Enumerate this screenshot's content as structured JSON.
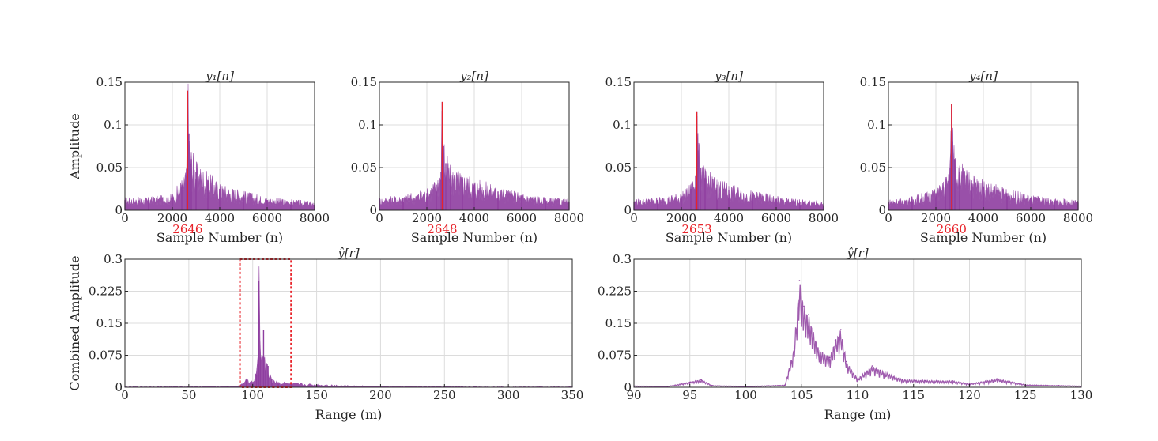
{
  "colors": {
    "series": "#8e3ea0",
    "marker": "#e8232a",
    "grid": "#dcdcdc",
    "axis": "#262626"
  },
  "chart_data": [
    {
      "type": "area",
      "title": "y₁[n]",
      "xlabel": "Sample Number (n)",
      "ylabel": "Amplitude",
      "xlim": [
        0,
        8000
      ],
      "ylim": [
        0,
        0.15
      ],
      "xticks": [
        "0",
        "2000",
        "4000",
        "6000",
        "8000"
      ],
      "yticks": [
        "0",
        "0.05",
        "0.1",
        "0.15"
      ],
      "grid": true,
      "marker": {
        "x": 2646,
        "label": "2646"
      },
      "peak": 0.14,
      "series": [
        {
          "x": [
            0,
            1000,
            2000,
            2400,
            2600,
            2646,
            2700,
            2800,
            3000,
            3500,
            4000,
            5000,
            6000,
            7000,
            8000
          ],
          "y": [
            0.012,
            0.012,
            0.015,
            0.03,
            0.04,
            0.14,
            0.09,
            0.06,
            0.045,
            0.035,
            0.025,
            0.018,
            0.012,
            0.01,
            0.008
          ]
        }
      ]
    },
    {
      "type": "area",
      "title": "y₂[n]",
      "xlabel": "Sample Number (n)",
      "ylabel": "",
      "xlim": [
        0,
        8000
      ],
      "ylim": [
        0,
        0.15
      ],
      "xticks": [
        "0",
        "2000",
        "4000",
        "6000",
        "8000"
      ],
      "yticks": [
        "0",
        "0.05",
        "0.1",
        "0.15"
      ],
      "grid": true,
      "marker": {
        "x": 2648,
        "label": "2648"
      },
      "peak": 0.127,
      "series": [
        {
          "x": [
            0,
            1000,
            2000,
            2400,
            2600,
            2648,
            2700,
            2800,
            3000,
            3500,
            4000,
            5000,
            6000,
            7000,
            8000
          ],
          "y": [
            0.012,
            0.014,
            0.02,
            0.03,
            0.045,
            0.127,
            0.075,
            0.055,
            0.04,
            0.036,
            0.03,
            0.022,
            0.016,
            0.012,
            0.01
          ]
        }
      ]
    },
    {
      "type": "area",
      "title": "y₃[n]",
      "xlabel": "Sample Number (n)",
      "ylabel": "",
      "xlim": [
        0,
        8000
      ],
      "ylim": [
        0,
        0.15
      ],
      "xticks": [
        "0",
        "2000",
        "4000",
        "6000",
        "8000"
      ],
      "yticks": [
        "0",
        "0.05",
        "0.1",
        "0.15"
      ],
      "grid": true,
      "marker": {
        "x": 2653,
        "label": "2653"
      },
      "peak": 0.115,
      "series": [
        {
          "x": [
            0,
            1000,
            2000,
            2400,
            2600,
            2653,
            2700,
            2800,
            3000,
            3500,
            4000,
            5000,
            6000,
            7000,
            8000
          ],
          "y": [
            0.01,
            0.012,
            0.016,
            0.025,
            0.04,
            0.115,
            0.07,
            0.05,
            0.038,
            0.03,
            0.024,
            0.018,
            0.013,
            0.01,
            0.008
          ]
        }
      ]
    },
    {
      "type": "area",
      "title": "y₄[n]",
      "xlabel": "Sample Number (n)",
      "ylabel": "",
      "xlim": [
        0,
        8000
      ],
      "ylim": [
        0,
        0.15
      ],
      "xticks": [
        "0",
        "2000",
        "4000",
        "6000",
        "8000"
      ],
      "yticks": [
        "0",
        "0.05",
        "0.1",
        "0.15"
      ],
      "grid": true,
      "marker": {
        "x": 2660,
        "label": "2660"
      },
      "peak": 0.125,
      "series": [
        {
          "x": [
            0,
            1000,
            2000,
            2400,
            2600,
            2660,
            2700,
            2800,
            3000,
            3500,
            4000,
            5000,
            6000,
            7000,
            8000
          ],
          "y": [
            0.01,
            0.013,
            0.02,
            0.03,
            0.05,
            0.125,
            0.08,
            0.06,
            0.045,
            0.035,
            0.028,
            0.02,
            0.014,
            0.011,
            0.009
          ]
        }
      ]
    },
    {
      "type": "area",
      "title": "ŷ[r]",
      "xlabel": "Range (m)",
      "ylabel": "Combined Amplitude",
      "xlim": [
        0,
        350
      ],
      "ylim": [
        0,
        0.3
      ],
      "xticks": [
        "0",
        "50",
        "100",
        "150",
        "200",
        "250",
        "300",
        "350"
      ],
      "yticks": [
        "0",
        "0.075",
        "0.15",
        "0.225",
        "0.3"
      ],
      "grid": true,
      "highlight": {
        "x": [
          90,
          130
        ],
        "y": [
          0,
          0.3
        ]
      },
      "series": [
        {
          "x": [
            0,
            80,
            90,
            95,
            100,
            103,
            104.8,
            106,
            108.5,
            110,
            112,
            115,
            120,
            130,
            150,
            200,
            250,
            300,
            350
          ],
          "y": [
            0.001,
            0.002,
            0.004,
            0.018,
            0.012,
            0.03,
            0.25,
            0.07,
            0.135,
            0.04,
            0.05,
            0.02,
            0.012,
            0.008,
            0.006,
            0.002,
            0.0015,
            0.001,
            0.001
          ]
        }
      ]
    },
    {
      "type": "line",
      "title": "ŷ[r]",
      "xlabel": "Range (m)",
      "ylabel": "",
      "xlim": [
        90,
        130
      ],
      "ylim": [
        0,
        0.3
      ],
      "xticks": [
        "90",
        "95",
        "100",
        "105",
        "110",
        "115",
        "120",
        "125",
        "130"
      ],
      "yticks": [
        "0",
        "0.075",
        "0.15",
        "0.225",
        "0.3"
      ],
      "grid": true,
      "series": [
        {
          "x": [
            90,
            93,
            95,
            96,
            97,
            100,
            103.5,
            104.3,
            104.8,
            105.2,
            105.6,
            106.5,
            107.5,
            108,
            108.5,
            109,
            110,
            111.3,
            112,
            114,
            116,
            118.5,
            120,
            122.5,
            125,
            128,
            130
          ],
          "y": [
            0.003,
            0.002,
            0.012,
            0.018,
            0.004,
            0.002,
            0.005,
            0.09,
            0.25,
            0.19,
            0.17,
            0.09,
            0.07,
            0.11,
            0.135,
            0.06,
            0.02,
            0.05,
            0.04,
            0.018,
            0.016,
            0.015,
            0.008,
            0.02,
            0.006,
            0.004,
            0.003
          ]
        }
      ]
    }
  ]
}
